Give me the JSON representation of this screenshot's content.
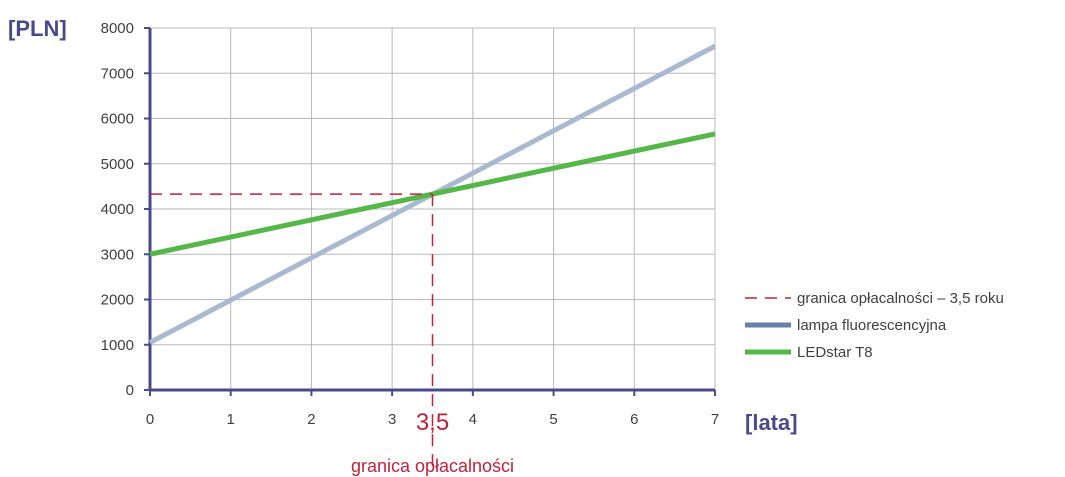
{
  "chart_data": {
    "type": "line",
    "ylabel": "[PLN]",
    "xlabel": "[lata]",
    "xlim": [
      0,
      7
    ],
    "ylim": [
      0,
      8000
    ],
    "x_ticks": [
      0,
      1,
      2,
      3,
      4,
      5,
      6,
      7
    ],
    "y_ticks": [
      0,
      1000,
      2000,
      3000,
      4000,
      5000,
      6000,
      7000,
      8000
    ],
    "grid": true,
    "series": [
      {
        "name": "lampa fluorescencyjna",
        "color": "#a9b9cf",
        "x": [
          0,
          7
        ],
        "y": [
          1050,
          7600
        ]
      },
      {
        "name": "LEDstar T8",
        "color": "#55b748",
        "x": [
          0,
          7
        ],
        "y": [
          3000,
          5660
        ]
      }
    ],
    "breakeven": {
      "x": 3.5,
      "y": 4330,
      "x_label": "3,5",
      "caption": "granica opłacalności",
      "legend_label": "granica opłacalności – 3,5 roku",
      "color": "#c0223b"
    },
    "legend": {
      "position": "right",
      "items": [
        {
          "label": "granica opłacalności – 3,5 roku",
          "style": "dashed",
          "color": "#c0223b"
        },
        {
          "label": "lampa fluorescencyjna",
          "style": "solid",
          "color": "#6a7fa6"
        },
        {
          "label": "LEDstar T8",
          "style": "solid",
          "color": "#55b748"
        }
      ]
    }
  }
}
